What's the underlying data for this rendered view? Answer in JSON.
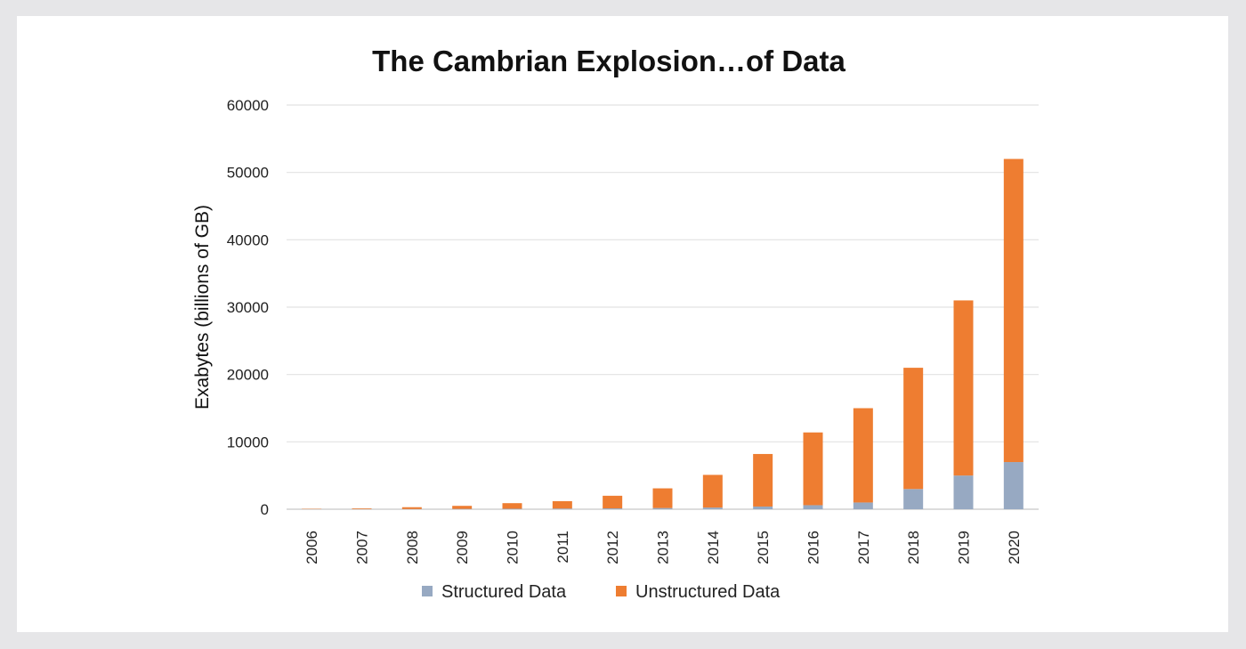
{
  "chart_data": {
    "type": "bar",
    "stacked": true,
    "title": "The Cambrian Explosion…of Data",
    "xlabel": "",
    "ylabel": "Exabytes (billions of GB)",
    "ylim": [
      0,
      60000
    ],
    "yticks": [
      "0",
      "10000",
      "20000",
      "30000",
      "40000",
      "50000",
      "60000"
    ],
    "grid": true,
    "legend_position": "bottom",
    "categories": [
      "2006",
      "2007",
      "2008",
      "2009",
      "2010",
      "2011",
      "2012",
      "2013",
      "2014",
      "2015",
      "2016",
      "2017",
      "2018",
      "2019",
      "2020"
    ],
    "series": [
      {
        "name": "Structured Data",
        "color": "#97a9c2",
        "values": [
          10,
          20,
          30,
          50,
          70,
          100,
          130,
          180,
          250,
          400,
          600,
          1000,
          3000,
          5000,
          7000
        ]
      },
      {
        "name": "Unstructured Data",
        "color": "#ee7d31",
        "values": [
          50,
          100,
          270,
          450,
          830,
          1100,
          1870,
          2920,
          4850,
          7800,
          10800,
          14000,
          18000,
          26000,
          45000
        ]
      }
    ]
  }
}
